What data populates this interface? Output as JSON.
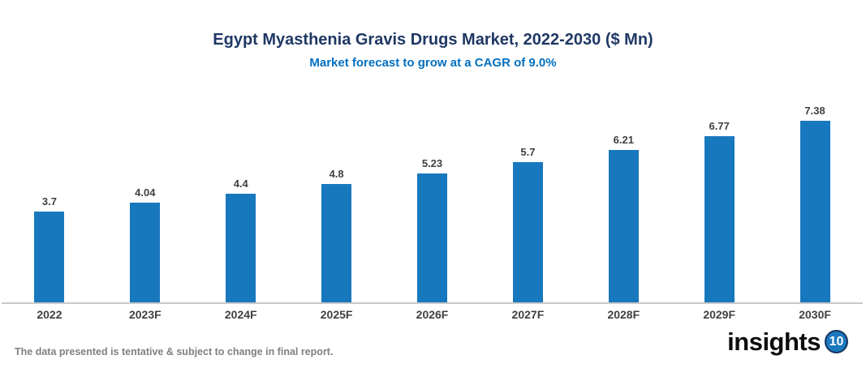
{
  "header": {
    "title": "Egypt Myasthenia Gravis Drugs Market, 2022-2030 ($ Mn)",
    "subtitle": "Market forecast to grow at a CAGR of 9.0%"
  },
  "chart_data": {
    "type": "bar",
    "categories": [
      "2022",
      "2023F",
      "2024F",
      "2025F",
      "2026F",
      "2027F",
      "2028F",
      "2029F",
      "2030F"
    ],
    "values": [
      3.7,
      4.04,
      4.4,
      4.8,
      5.23,
      5.7,
      6.21,
      6.77,
      7.38
    ],
    "value_labels": [
      "3.7",
      "4.04",
      "4.4",
      "4.8",
      "5.23",
      "5.7",
      "6.21",
      "6.77",
      "7.38"
    ],
    "title": "Egypt Myasthenia Gravis Drugs Market, 2022-2030 ($ Mn)",
    "subtitle": "Market forecast to grow at a CAGR of 9.0%",
    "xlabel": "",
    "ylabel": "",
    "ylim": [
      0,
      7.38
    ],
    "grid": false,
    "legend": false,
    "bar_color": "#1878BE"
  },
  "footer": {
    "disclaimer": "The data presented is tentative & subject to change in final report.",
    "logo": {
      "text": "insights",
      "badge": "10"
    }
  },
  "colors": {
    "title": "#1F3864",
    "subtitle": "#0070C0",
    "bar": "#1878BE",
    "label": "#404040",
    "axis": "#C9C9C9",
    "footer_text": "#808080",
    "logo_badge_fill": "#1B78BE",
    "logo_badge_ring": "#16355F"
  }
}
